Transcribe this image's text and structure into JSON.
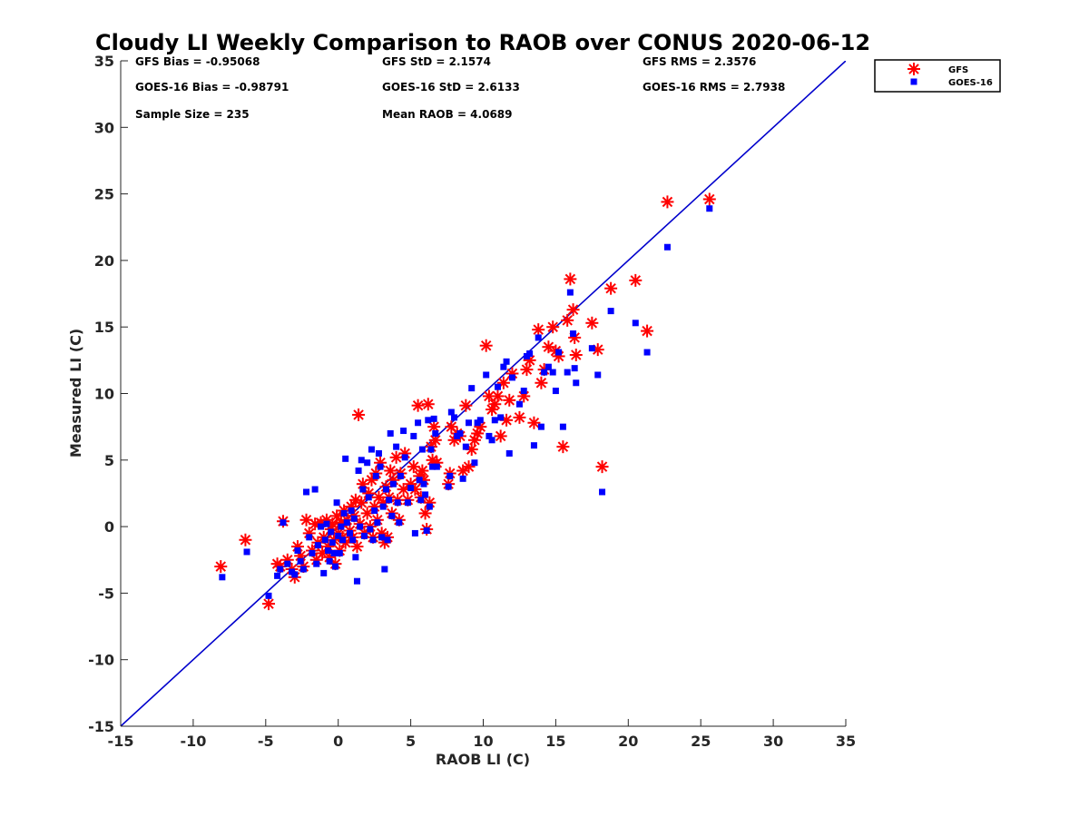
{
  "chart_data": {
    "type": "scatter",
    "title": "Cloudy LI Weekly Comparison to RAOB over CONUS 2020-06-12",
    "xlabel": "RAOB LI (C)",
    "ylabel": "Measured LI (C)",
    "xlim": [
      -15,
      35
    ],
    "ylim": [
      -15,
      35
    ],
    "xticks": [
      "-15",
      "-10",
      "-5",
      "0",
      "5",
      "10",
      "15",
      "20",
      "25",
      "30",
      "35"
    ],
    "yticks": [
      "-15",
      "-10",
      "-5",
      "0",
      "5",
      "10",
      "15",
      "20",
      "25",
      "30",
      "35"
    ],
    "grid": false,
    "legend_position": "outside-top-right",
    "reference_line": {
      "label": "",
      "from": [
        -15,
        -15
      ],
      "to": [
        35,
        35
      ],
      "color": "#0000cc"
    },
    "stats": [
      [
        "GFS Bias = -0.95068",
        "GFS StD = 2.1574",
        "GFS RMS = 2.3576"
      ],
      [
        "GOES-16 Bias = -0.98791",
        "GOES-16 StD = 2.6133",
        "GOES-16 RMS = 2.7938"
      ],
      [
        "Sample Size = 235",
        "Mean RAOB = 4.0689",
        ""
      ]
    ],
    "series": [
      {
        "name": "GFS",
        "marker": "asterisk",
        "color": "#ff0000",
        "points": [
          [
            -8.1,
            -3.0
          ],
          [
            -6.4,
            -1.0
          ],
          [
            -4.8,
            -5.8
          ],
          [
            -4.2,
            -2.8
          ],
          [
            -4.0,
            -3.0
          ],
          [
            -3.8,
            0.4
          ],
          [
            -3.5,
            -2.5
          ],
          [
            -3.2,
            -3.2
          ],
          [
            -3.0,
            -3.8
          ],
          [
            -2.8,
            -1.5
          ],
          [
            -2.6,
            -2.2
          ],
          [
            -2.4,
            -3.0
          ],
          [
            -2.2,
            0.5
          ],
          [
            -2.0,
            -0.5
          ],
          [
            -1.8,
            -1.8
          ],
          [
            -1.6,
            0.2
          ],
          [
            -1.5,
            -2.5
          ],
          [
            -1.4,
            -1.2
          ],
          [
            -1.2,
            0.3
          ],
          [
            -1.1,
            -2.0
          ],
          [
            -1.0,
            -0.8
          ],
          [
            -0.8,
            0.5
          ],
          [
            -0.7,
            -1.5
          ],
          [
            -0.6,
            -2.3
          ],
          [
            -0.5,
            -0.2
          ],
          [
            -0.4,
            0.2
          ],
          [
            -0.3,
            -1.0
          ],
          [
            -0.2,
            -2.8
          ],
          [
            -0.1,
            0.8
          ],
          [
            0.0,
            -0.5
          ],
          [
            0.1,
            -1.8
          ],
          [
            0.2,
            0.3
          ],
          [
            0.3,
            -0.8
          ],
          [
            0.4,
            1.2
          ],
          [
            0.5,
            -1.2
          ],
          [
            0.6,
            0.5
          ],
          [
            0.8,
            -0.3
          ],
          [
            0.9,
            1.5
          ],
          [
            1.0,
            -0.8
          ],
          [
            1.1,
            0.8
          ],
          [
            1.2,
            2.0
          ],
          [
            1.3,
            -1.5
          ],
          [
            1.4,
            8.4
          ],
          [
            1.5,
            0.2
          ],
          [
            1.6,
            1.8
          ],
          [
            1.7,
            3.2
          ],
          [
            1.8,
            -0.5
          ],
          [
            2.0,
            1.0
          ],
          [
            2.1,
            2.5
          ],
          [
            2.2,
            0.0
          ],
          [
            2.3,
            3.5
          ],
          [
            2.4,
            -0.8
          ],
          [
            2.5,
            1.5
          ],
          [
            2.6,
            4.0
          ],
          [
            2.7,
            0.5
          ],
          [
            2.8,
            2.2
          ],
          [
            2.9,
            4.8
          ],
          [
            3.0,
            -0.5
          ],
          [
            3.1,
            1.8
          ],
          [
            3.2,
            -1.2
          ],
          [
            3.3,
            3.0
          ],
          [
            3.4,
            -0.8
          ],
          [
            3.5,
            2.2
          ],
          [
            3.6,
            4.2
          ],
          [
            3.7,
            1.0
          ],
          [
            3.8,
            3.5
          ],
          [
            4.0,
            5.2
          ],
          [
            4.1,
            2.0
          ],
          [
            4.2,
            0.5
          ],
          [
            4.3,
            4.0
          ],
          [
            4.5,
            2.8
          ],
          [
            4.6,
            5.5
          ],
          [
            4.8,
            2.0
          ],
          [
            5.0,
            3.2
          ],
          [
            5.2,
            4.5
          ],
          [
            5.3,
            2.8
          ],
          [
            5.5,
            9.1
          ],
          [
            5.6,
            3.8
          ],
          [
            5.7,
            2.2
          ],
          [
            5.8,
            4.2
          ],
          [
            5.9,
            3.5
          ],
          [
            6.0,
            1.0
          ],
          [
            6.1,
            -0.2
          ],
          [
            6.2,
            9.2
          ],
          [
            6.3,
            1.8
          ],
          [
            6.4,
            6.0
          ],
          [
            6.5,
            5.0
          ],
          [
            6.6,
            7.5
          ],
          [
            6.7,
            6.5
          ],
          [
            6.8,
            4.8
          ],
          [
            7.6,
            3.2
          ],
          [
            7.7,
            4.0
          ],
          [
            7.8,
            7.5
          ],
          [
            8.0,
            6.5
          ],
          [
            8.2,
            7.0
          ],
          [
            8.4,
            6.8
          ],
          [
            8.6,
            4.2
          ],
          [
            8.8,
            9.1
          ],
          [
            9.0,
            4.5
          ],
          [
            9.2,
            5.8
          ],
          [
            9.4,
            6.5
          ],
          [
            9.6,
            7.0
          ],
          [
            9.8,
            7.5
          ],
          [
            10.2,
            13.6
          ],
          [
            10.4,
            9.8
          ],
          [
            10.6,
            8.8
          ],
          [
            10.8,
            9.2
          ],
          [
            11.0,
            9.8
          ],
          [
            11.2,
            6.8
          ],
          [
            11.4,
            10.8
          ],
          [
            11.6,
            8.0
          ],
          [
            11.8,
            9.5
          ],
          [
            12.0,
            11.5
          ],
          [
            12.5,
            8.2
          ],
          [
            12.8,
            9.8
          ],
          [
            13.0,
            11.8
          ],
          [
            13.2,
            12.5
          ],
          [
            13.5,
            7.8
          ],
          [
            13.8,
            14.8
          ],
          [
            14.0,
            10.8
          ],
          [
            14.2,
            11.8
          ],
          [
            14.5,
            13.5
          ],
          [
            14.8,
            15.0
          ],
          [
            15.0,
            13.2
          ],
          [
            15.2,
            12.8
          ],
          [
            15.5,
            6.0
          ],
          [
            15.8,
            15.5
          ],
          [
            16.0,
            18.6
          ],
          [
            16.2,
            16.3
          ],
          [
            16.3,
            14.2
          ],
          [
            16.4,
            12.9
          ],
          [
            17.5,
            15.3
          ],
          [
            17.9,
            13.3
          ],
          [
            18.2,
            4.5
          ],
          [
            18.8,
            17.9
          ],
          [
            20.5,
            18.5
          ],
          [
            21.3,
            14.7
          ],
          [
            22.7,
            24.4
          ],
          [
            25.6,
            24.6
          ]
        ]
      },
      {
        "name": "GOES-16",
        "marker": "square",
        "color": "#0000ff",
        "points": [
          [
            -8.0,
            -3.8
          ],
          [
            -6.3,
            -1.9
          ],
          [
            -4.8,
            -5.2
          ],
          [
            -4.2,
            -3.7
          ],
          [
            -4.0,
            -3.2
          ],
          [
            -3.8,
            0.3
          ],
          [
            -3.5,
            -2.8
          ],
          [
            -3.2,
            -3.4
          ],
          [
            -3.0,
            -3.6
          ],
          [
            -2.8,
            -1.8
          ],
          [
            -2.6,
            -2.6
          ],
          [
            -2.4,
            -3.2
          ],
          [
            -2.2,
            2.6
          ],
          [
            -2.0,
            -0.8
          ],
          [
            -1.8,
            -2.0
          ],
          [
            -1.6,
            2.8
          ],
          [
            -1.5,
            -2.8
          ],
          [
            -1.4,
            -1.4
          ],
          [
            -1.2,
            0.0
          ],
          [
            -1.0,
            -3.5
          ],
          [
            -0.9,
            -1.0
          ],
          [
            -0.8,
            0.2
          ],
          [
            -0.7,
            -1.8
          ],
          [
            -0.6,
            -2.6
          ],
          [
            -0.5,
            -0.4
          ],
          [
            -0.4,
            -1.2
          ],
          [
            -0.3,
            -2.0
          ],
          [
            -0.2,
            -3.0
          ],
          [
            -0.1,
            1.8
          ],
          [
            0.0,
            -0.7
          ],
          [
            0.1,
            -2.0
          ],
          [
            0.2,
            0.0
          ],
          [
            0.3,
            -1.0
          ],
          [
            0.4,
            1.0
          ],
          [
            0.5,
            5.1
          ],
          [
            0.6,
            0.3
          ],
          [
            0.8,
            -0.5
          ],
          [
            0.9,
            1.2
          ],
          [
            1.0,
            -1.0
          ],
          [
            1.1,
            0.6
          ],
          [
            1.2,
            -2.3
          ],
          [
            1.3,
            -4.1
          ],
          [
            1.4,
            4.2
          ],
          [
            1.5,
            0.0
          ],
          [
            1.6,
            5.0
          ],
          [
            1.7,
            2.8
          ],
          [
            1.8,
            -0.7
          ],
          [
            2.0,
            4.8
          ],
          [
            2.1,
            2.2
          ],
          [
            2.2,
            -0.2
          ],
          [
            2.3,
            5.8
          ],
          [
            2.4,
            -1.0
          ],
          [
            2.5,
            1.2
          ],
          [
            2.6,
            3.8
          ],
          [
            2.7,
            0.3
          ],
          [
            2.8,
            5.5
          ],
          [
            2.9,
            4.5
          ],
          [
            3.0,
            -0.8
          ],
          [
            3.1,
            1.5
          ],
          [
            3.2,
            -3.2
          ],
          [
            3.3,
            2.8
          ],
          [
            3.4,
            -1.0
          ],
          [
            3.5,
            2.0
          ],
          [
            3.6,
            7.0
          ],
          [
            3.7,
            0.8
          ],
          [
            3.8,
            3.2
          ],
          [
            4.0,
            6.0
          ],
          [
            4.1,
            1.8
          ],
          [
            4.2,
            0.3
          ],
          [
            4.3,
            3.8
          ],
          [
            4.5,
            7.2
          ],
          [
            4.6,
            5.2
          ],
          [
            4.8,
            1.8
          ],
          [
            5.0,
            2.9
          ],
          [
            5.2,
            6.8
          ],
          [
            5.3,
            -0.5
          ],
          [
            5.5,
            7.8
          ],
          [
            5.6,
            3.5
          ],
          [
            5.7,
            2.0
          ],
          [
            5.8,
            5.8
          ],
          [
            5.9,
            3.2
          ],
          [
            6.0,
            2.4
          ],
          [
            6.1,
            -0.3
          ],
          [
            6.2,
            8.0
          ],
          [
            6.3,
            1.5
          ],
          [
            6.4,
            5.8
          ],
          [
            6.5,
            4.5
          ],
          [
            6.6,
            8.1
          ],
          [
            6.7,
            7.0
          ],
          [
            6.8,
            4.5
          ],
          [
            7.6,
            3.0
          ],
          [
            7.7,
            3.8
          ],
          [
            7.8,
            8.6
          ],
          [
            8.0,
            8.2
          ],
          [
            8.2,
            6.8
          ],
          [
            8.4,
            7.0
          ],
          [
            8.6,
            3.6
          ],
          [
            8.8,
            6.0
          ],
          [
            9.0,
            7.8
          ],
          [
            9.2,
            10.4
          ],
          [
            9.4,
            4.8
          ],
          [
            9.6,
            7.8
          ],
          [
            9.8,
            8.0
          ],
          [
            10.2,
            11.4
          ],
          [
            10.4,
            6.8
          ],
          [
            10.6,
            6.5
          ],
          [
            10.8,
            8.0
          ],
          [
            11.0,
            10.5
          ],
          [
            11.2,
            8.2
          ],
          [
            11.4,
            12.0
          ],
          [
            11.6,
            12.4
          ],
          [
            11.8,
            5.5
          ],
          [
            12.0,
            11.2
          ],
          [
            12.5,
            9.2
          ],
          [
            12.8,
            10.2
          ],
          [
            13.0,
            12.8
          ],
          [
            13.2,
            13.0
          ],
          [
            13.5,
            6.1
          ],
          [
            13.8,
            14.2
          ],
          [
            14.0,
            7.5
          ],
          [
            14.2,
            11.6
          ],
          [
            14.5,
            12.0
          ],
          [
            14.8,
            11.6
          ],
          [
            15.0,
            10.2
          ],
          [
            15.2,
            13.1
          ],
          [
            15.5,
            7.5
          ],
          [
            15.8,
            11.6
          ],
          [
            16.0,
            17.6
          ],
          [
            16.2,
            14.5
          ],
          [
            16.3,
            11.9
          ],
          [
            16.4,
            10.8
          ],
          [
            17.5,
            13.4
          ],
          [
            17.9,
            11.4
          ],
          [
            18.2,
            2.6
          ],
          [
            18.8,
            16.2
          ],
          [
            20.5,
            15.3
          ],
          [
            21.3,
            13.1
          ],
          [
            22.7,
            21.0
          ],
          [
            25.6,
            23.9
          ]
        ]
      }
    ]
  }
}
